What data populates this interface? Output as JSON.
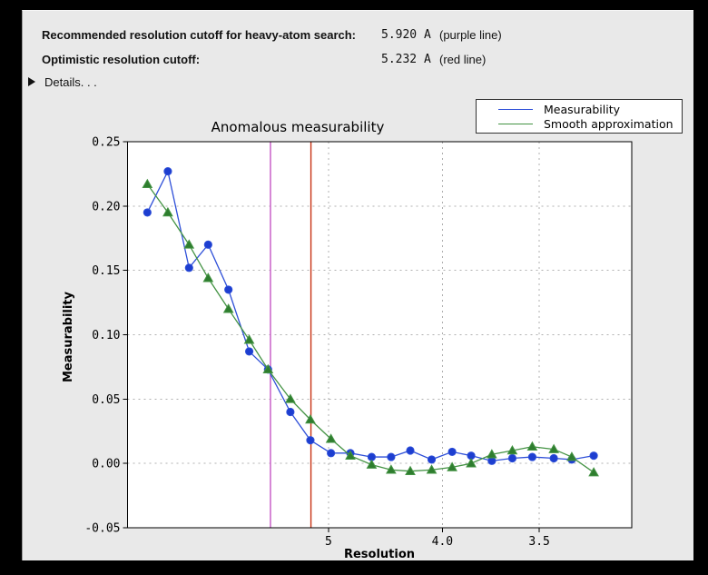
{
  "window": {
    "frame_color": "#000000",
    "panel_bg": "#e9e9e9"
  },
  "header": {
    "rows": [
      {
        "label": "Recommended resolution cutoff for heavy-atom search:",
        "value": "5.920 A",
        "note": "(purple line)"
      },
      {
        "label": "Optimistic resolution cutoff:",
        "value": "5.232 A",
        "note": "(red line)"
      }
    ],
    "details_label": "Details. . ."
  },
  "chart_data": {
    "type": "line",
    "title": "Anomalous measurability",
    "xlabel": "Resolution",
    "ylabel": "Measurability",
    "grid": true,
    "legend_position": "top-right",
    "x_axis": {
      "scale": "linear in 1/d^2 (resolution in Angstrom, decreasing d to the right)",
      "ticks": [
        {
          "label": "5",
          "value": 5.0
        },
        {
          "label": "4.0",
          "value": 4.0
        },
        {
          "label": "3.5",
          "value": 3.5
        }
      ],
      "s_range": [
        0.0003,
        0.0999
      ]
    },
    "y_axis": {
      "ticks": [
        {
          "label": "0.25",
          "value": 0.25
        },
        {
          "label": "0.20",
          "value": 0.2
        },
        {
          "label": "0.15",
          "value": 0.15
        },
        {
          "label": "0.10",
          "value": 0.1
        },
        {
          "label": "0.05",
          "value": 0.05
        },
        {
          "label": "0.00",
          "value": 0.0
        },
        {
          "label": "-0.05",
          "value": -0.05
        }
      ],
      "ylim": [
        -0.05,
        0.25
      ]
    },
    "resolution_A": [
      15.4,
      11.0,
      8.96,
      7.85,
      7.03,
      6.41,
      5.97,
      5.55,
      5.24,
      4.97,
      4.75,
      4.54,
      4.37,
      4.22,
      4.07,
      3.94,
      3.83,
      3.72,
      3.62,
      3.53,
      3.44,
      3.37,
      3.29
    ],
    "series": [
      {
        "name": "Measurability",
        "color": "#2e4fd8",
        "marker_color": "#1d3ed0",
        "marker": "circle",
        "values": [
          0.195,
          0.227,
          0.152,
          0.17,
          0.135,
          0.087,
          0.073,
          0.04,
          0.018,
          0.008,
          0.008,
          0.005,
          0.005,
          0.01,
          0.003,
          0.009,
          0.006,
          0.002,
          0.004,
          0.005,
          0.004,
          0.003,
          0.006
        ]
      },
      {
        "name": "Smooth approximation",
        "color": "#449344",
        "marker_color": "#2e7d2e",
        "marker": "triangle",
        "values": [
          0.217,
          0.195,
          0.17,
          0.144,
          0.12,
          0.096,
          0.073,
          0.05,
          0.034,
          0.019,
          0.006,
          -0.001,
          -0.005,
          -0.006,
          -0.005,
          -0.003,
          0.0,
          0.007,
          0.01,
          0.013,
          0.011,
          0.005,
          -0.007
        ]
      }
    ],
    "vlines": [
      {
        "name": "recommended-cutoff",
        "resolution_A": 5.92,
        "color": "#c455c4"
      },
      {
        "name": "optimistic-cutoff",
        "resolution_A": 5.232,
        "color": "#c83214"
      }
    ],
    "colors": {
      "gridline": "#b0b0b0",
      "spine": "#000000",
      "plot_bg": "#ffffff"
    }
  }
}
